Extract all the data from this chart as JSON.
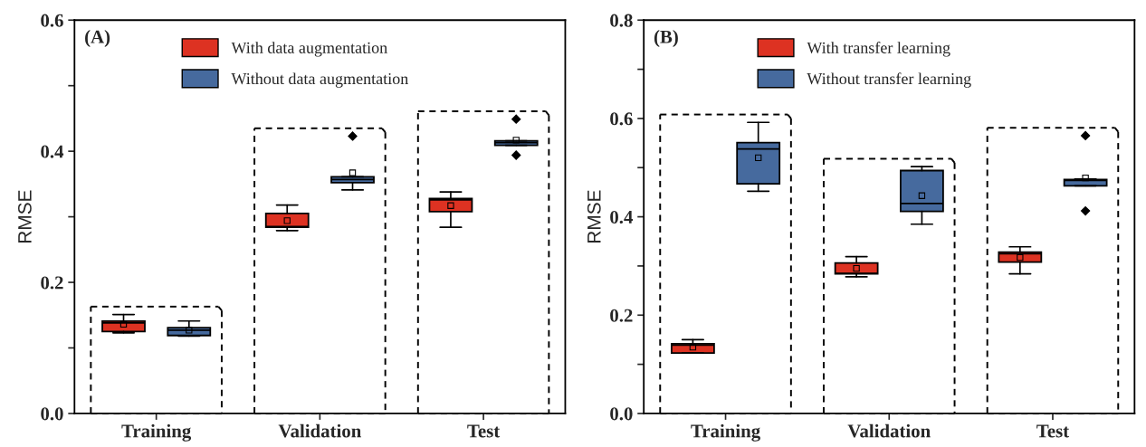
{
  "chart_data": [
    {
      "type": "box",
      "ylabel": "RMSE",
      "annotations": [
        "(A)"
      ],
      "legend": "top",
      "grid": false,
      "categories": [
        "Training",
        "Validation",
        "Test"
      ],
      "ylim": [
        0,
        0.6
      ],
      "yticks": [
        {
          "value": 0,
          "label": "0.0"
        },
        {
          "value": 0.1,
          "label": null
        },
        0.2,
        {
          "value": 0.3,
          "label": null
        },
        0.4,
        {
          "value": 0.5,
          "label": null
        },
        0.6
      ],
      "series": [
        {
          "name": "With data augmentation",
          "color": "#dd3222",
          "boxes": [
            {
              "low": 0.123,
              "q1": 0.125,
              "median": 0.138,
              "q3": 0.141,
              "high": 0.151,
              "mean": 0.136
            },
            {
              "low": 0.279,
              "q1": 0.284,
              "median": 0.285,
              "q3": 0.305,
              "high": 0.318,
              "mean": 0.294
            },
            {
              "low": 0.284,
              "q1": 0.308,
              "median": 0.326,
              "q3": 0.328,
              "high": 0.338,
              "mean": 0.317
            }
          ]
        },
        {
          "name": "Without data augmentation",
          "color": "#466a9e",
          "boxes": [
            {
              "low": 0.118,
              "q1": 0.119,
              "median": 0.127,
              "q3": 0.131,
              "high": 0.141,
              "mean": 0.127
            },
            {
              "low": 0.341,
              "q1": 0.352,
              "median": 0.357,
              "q3": 0.361,
              "high": 0.361,
              "mean": 0.367,
              "outliers": [
                0.423
              ]
            },
            {
              "low": 0.409,
              "q1": 0.409,
              "median": 0.413,
              "q3": 0.416,
              "high": 0.416,
              "mean": 0.417,
              "outliers": [
                0.449,
                0.394
              ]
            }
          ]
        }
      ]
    },
    {
      "type": "box",
      "ylabel": "RMSE",
      "annotations": [
        "(B)"
      ],
      "legend": "top",
      "grid": false,
      "categories": [
        "Training",
        "Validation",
        "Test"
      ],
      "ylim": [
        0,
        0.8
      ],
      "yticks": [
        {
          "value": 0,
          "label": "0.0"
        },
        {
          "value": 0.1,
          "label": null
        },
        0.2,
        {
          "value": 0.3,
          "label": null
        },
        0.4,
        {
          "value": 0.5,
          "label": null
        },
        0.6,
        {
          "value": 0.7,
          "label": null
        },
        0.8
      ],
      "series": [
        {
          "name": "With transfer learning",
          "color": "#dd3222",
          "boxes": [
            {
              "low": 0.123,
              "q1": 0.123,
              "median": 0.139,
              "q3": 0.142,
              "high": 0.15,
              "mean": 0.135
            },
            {
              "low": 0.278,
              "q1": 0.284,
              "median": 0.285,
              "q3": 0.306,
              "high": 0.319,
              "mean": 0.295
            },
            {
              "low": 0.284,
              "q1": 0.308,
              "median": 0.325,
              "q3": 0.328,
              "high": 0.339,
              "mean": 0.317
            }
          ]
        },
        {
          "name": "Without transfer learning",
          "color": "#466a9e",
          "boxes": [
            {
              "low": 0.452,
              "q1": 0.467,
              "median": 0.538,
              "q3": 0.551,
              "high": 0.592,
              "mean": 0.52
            },
            {
              "low": 0.385,
              "q1": 0.411,
              "median": 0.427,
              "q3": 0.494,
              "high": 0.502,
              "mean": 0.443
            },
            {
              "low": 0.463,
              "q1": 0.463,
              "median": 0.474,
              "q3": 0.476,
              "high": 0.477,
              "mean": 0.479,
              "outliers": [
                0.565,
                0.412
              ]
            }
          ]
        }
      ]
    }
  ]
}
